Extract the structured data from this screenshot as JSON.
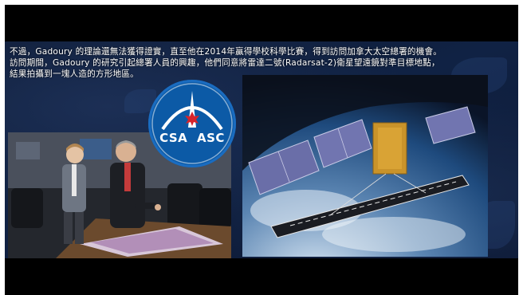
{
  "caption": {
    "line1": "不過，Gadoury 的理論還無法獲得證實，直至他在2014年贏得學校科學比賽，得到訪問加拿大太空總署的機會。",
    "line2": "訪問期間，Gadoury 的研究引起總署人員的興趣，他們同意將雷達二號(Radarsat-2)衛星望遠鏡對準目標地點，",
    "line3": "結果拍攝到一塊人造的方形地區。"
  },
  "logo": {
    "text_left": "CSA",
    "text_right": "ASC"
  },
  "colors": {
    "background": "#000000",
    "panel": "#102244",
    "logo_blue": "#0c5aa6",
    "maple_red": "#d6242b"
  }
}
